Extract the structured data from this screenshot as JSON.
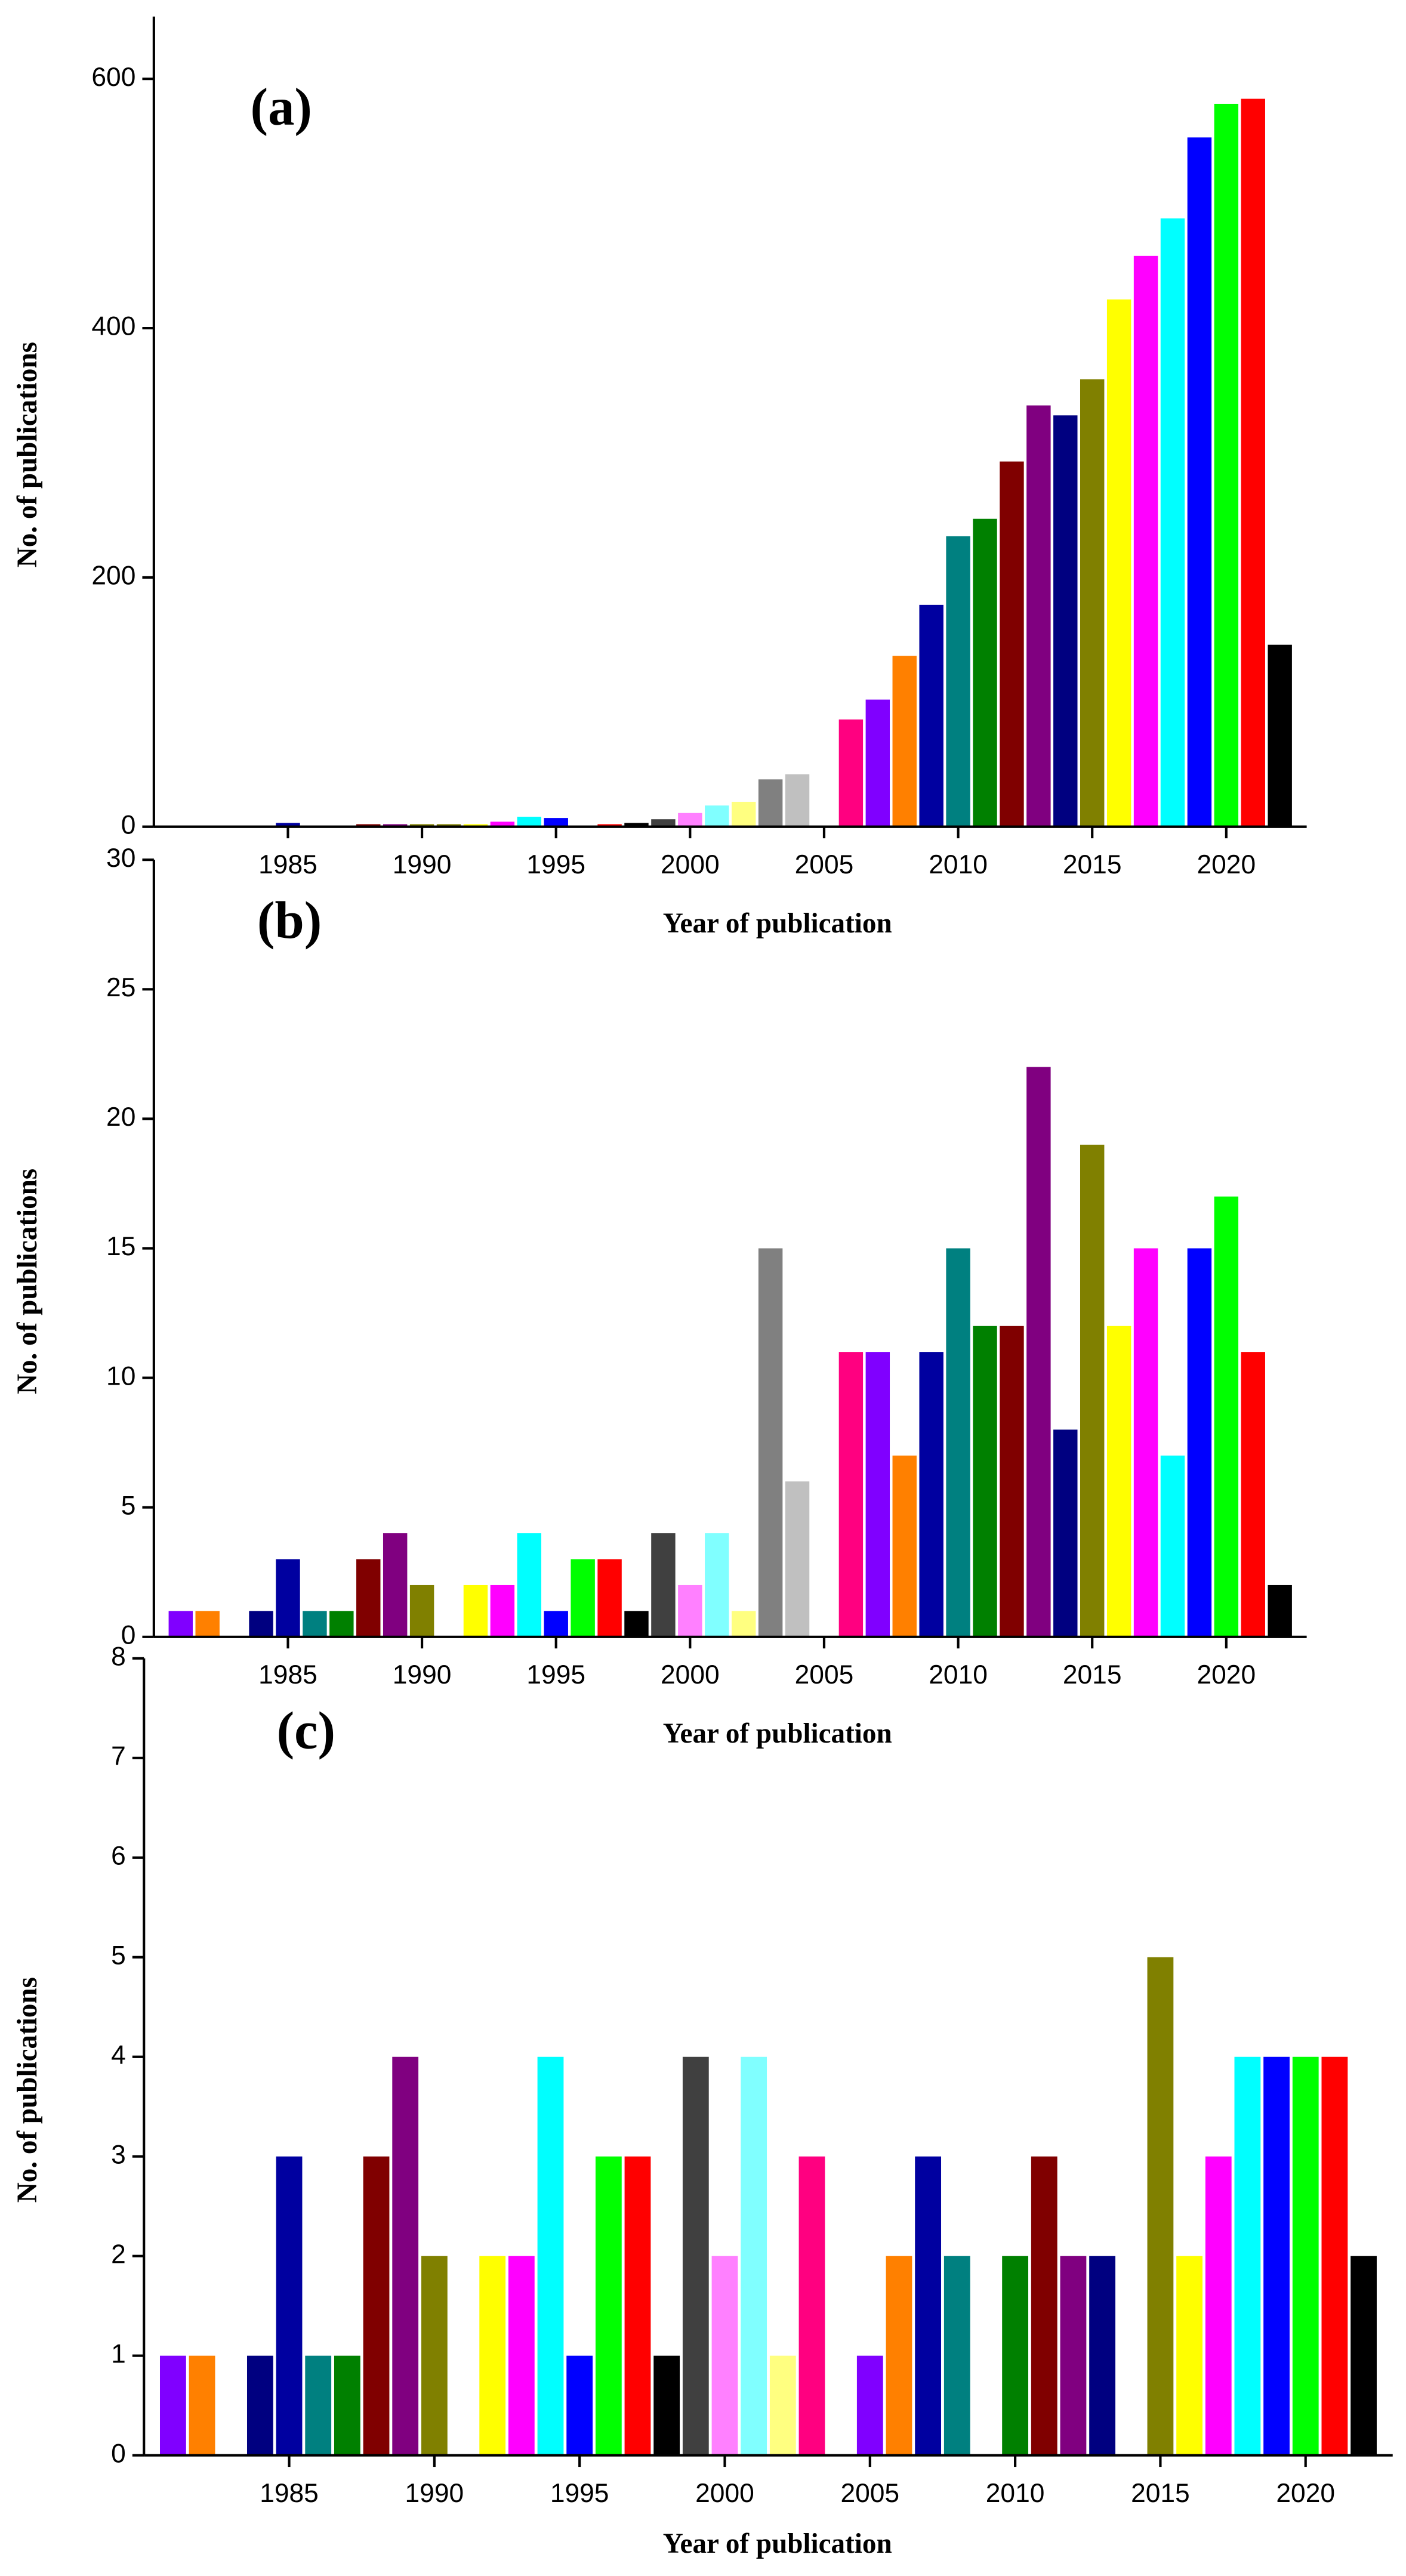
{
  "chart_data": [
    {
      "type": "bar",
      "annotation": "(a)",
      "xlabel": "Year of publication",
      "ylabel": "No. of publications",
      "x": [
        1981,
        1982,
        1983,
        1984,
        1985,
        1986,
        1987,
        1988,
        1989,
        1990,
        1991,
        1992,
        1993,
        1994,
        1995,
        1996,
        1997,
        1998,
        1999,
        2000,
        2001,
        2002,
        2003,
        2004,
        2005,
        2006,
        2007,
        2008,
        2009,
        2010,
        2011,
        2012,
        2013,
        2014,
        2015,
        2016,
        2017,
        2018,
        2019,
        2020,
        2021,
        2022
      ],
      "values": [
        0,
        0,
        0,
        0,
        3,
        0,
        0,
        2,
        2,
        2,
        2,
        2,
        4,
        8,
        7,
        0,
        2,
        3,
        6,
        11,
        17,
        20,
        38,
        42,
        0,
        86,
        102,
        137,
        178,
        233,
        247,
        293,
        338,
        330,
        359,
        423,
        458,
        488,
        553,
        580,
        584,
        146
      ],
      "colors": [
        "#8000ff",
        "#ff8000",
        "#000080",
        "#000080",
        "#0000a0",
        "#008080",
        "#008000",
        "#800000",
        "#800080",
        "#808000",
        "#808000",
        "#ffff00",
        "#ff00ff",
        "#00ffff",
        "#0000ff",
        "#00ff00",
        "#ff0000",
        "#000000",
        "#404040",
        "#ff80ff",
        "#80ffff",
        "#ffff80",
        "#808080",
        "#c0c0c0",
        "#c0c0c0",
        "#ff0080",
        "#8000ff",
        "#ff8000",
        "#0000a0",
        "#008080",
        "#008000",
        "#800000",
        "#800080",
        "#000080",
        "#808000",
        "#ffff00",
        "#ff00ff",
        "#00ffff",
        "#0000ff",
        "#00ff00",
        "#ff0000",
        "#000000"
      ],
      "xlim": [
        1980,
        2023
      ],
      "xticks": [
        1985,
        1990,
        1995,
        2000,
        2005,
        2010,
        2015,
        2020
      ],
      "ylim": [
        0,
        650
      ],
      "yticks": [
        0,
        200,
        400,
        600
      ]
    },
    {
      "type": "bar",
      "annotation": "(b)",
      "xlabel": "Year of publication",
      "ylabel": "No. of publications",
      "x": [
        1981,
        1982,
        1983,
        1984,
        1985,
        1986,
        1987,
        1988,
        1989,
        1990,
        1991,
        1992,
        1993,
        1994,
        1995,
        1996,
        1997,
        1998,
        1999,
        2000,
        2001,
        2002,
        2003,
        2004,
        2005,
        2006,
        2007,
        2008,
        2009,
        2010,
        2011,
        2012,
        2013,
        2014,
        2015,
        2016,
        2017,
        2018,
        2019,
        2020,
        2021,
        2022
      ],
      "values": [
        1,
        1,
        0,
        1,
        3,
        1,
        1,
        3,
        4,
        2,
        0,
        2,
        2,
        4,
        1,
        3,
        3,
        1,
        4,
        2,
        4,
        1,
        15,
        6,
        0,
        11,
        11,
        7,
        11,
        15,
        12,
        12,
        22,
        8,
        19,
        12,
        15,
        7,
        15,
        17,
        11,
        2
      ],
      "colors": [
        "#8000ff",
        "#ff8000",
        "#000080",
        "#000080",
        "#0000a0",
        "#008080",
        "#008000",
        "#800000",
        "#800080",
        "#808000",
        "#808000",
        "#ffff00",
        "#ff00ff",
        "#00ffff",
        "#0000ff",
        "#00ff00",
        "#ff0000",
        "#000000",
        "#404040",
        "#ff80ff",
        "#80ffff",
        "#ffff80",
        "#808080",
        "#c0c0c0",
        "#c0c0c0",
        "#ff0080",
        "#8000ff",
        "#ff8000",
        "#0000a0",
        "#008080",
        "#008000",
        "#800000",
        "#800080",
        "#000080",
        "#808000",
        "#ffff00",
        "#ff00ff",
        "#00ffff",
        "#0000ff",
        "#00ff00",
        "#ff0000",
        "#000000"
      ],
      "xlim": [
        1980,
        2023
      ],
      "xticks": [
        1985,
        1990,
        1995,
        2000,
        2005,
        2010,
        2015,
        2020
      ],
      "ylim": [
        0,
        30
      ],
      "yticks": [
        0,
        5,
        10,
        15,
        20,
        25,
        30
      ]
    },
    {
      "type": "bar",
      "annotation": "(c)",
      "xlabel": "Year of publication",
      "ylabel": "No. of publications",
      "x": [
        1981,
        1982,
        1983,
        1984,
        1985,
        1986,
        1987,
        1988,
        1989,
        1990,
        1991,
        1992,
        1993,
        1994,
        1995,
        1996,
        1997,
        1998,
        1999,
        2000,
        2001,
        2002,
        2003,
        2004,
        2005,
        2006,
        2007,
        2008,
        2009,
        2010,
        2011,
        2012,
        2013,
        2014,
        2015,
        2016,
        2017,
        2018,
        2019,
        2020,
        2021,
        2022
      ],
      "values": [
        1,
        1,
        0,
        1,
        3,
        1,
        1,
        3,
        4,
        2,
        0,
        2,
        2,
        4,
        1,
        3,
        3,
        1,
        4,
        2,
        4,
        1,
        3,
        0,
        1,
        2,
        3,
        2,
        0,
        2,
        3,
        2,
        2,
        0,
        5,
        2,
        3,
        4,
        4,
        4,
        4,
        2
      ],
      "colors": [
        "#8000ff",
        "#ff8000",
        "#000080",
        "#000080",
        "#0000a0",
        "#008080",
        "#008000",
        "#800000",
        "#800080",
        "#808000",
        "#808000",
        "#ffff00",
        "#ff00ff",
        "#00ffff",
        "#0000ff",
        "#00ff00",
        "#ff0000",
        "#000000",
        "#404040",
        "#ff80ff",
        "#80ffff",
        "#ffff80",
        "#ff0080",
        "#ff0080",
        "#8000ff",
        "#ff8000",
        "#0000a0",
        "#008080",
        "#008080",
        "#008000",
        "#800000",
        "#800080",
        "#000080",
        "#000080",
        "#808000",
        "#ffff00",
        "#ff00ff",
        "#00ffff",
        "#0000ff",
        "#00ff00",
        "#ff0000",
        "#000000"
      ],
      "xlim": [
        1980,
        2023
      ],
      "xticks": [
        1985,
        1990,
        1995,
        2000,
        2005,
        2010,
        2015,
        2020
      ],
      "ylim": [
        0,
        8
      ],
      "yticks": [
        0,
        1,
        2,
        3,
        4,
        5,
        6,
        7,
        8
      ]
    }
  ]
}
